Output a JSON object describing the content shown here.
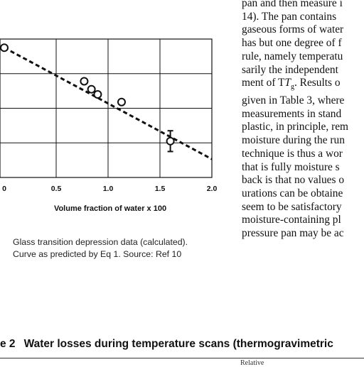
{
  "body_text": [
    "pan and then measure i",
    "14). The pan contains",
    "gaseous forms of water",
    "has but one degree of f",
    "rule, namely temperatu",
    "sarily the independent",
    "ment of T",
    "given in Table 3, where",
    "measurements in stand",
    "plastic, in principle, rem",
    "moisture during the run",
    "technique is thus a wor",
    "that is fully moisture s",
    "back is that no values o",
    "urations can be obtaine",
    "seem to be satisfactory",
    "moisture-containing pl",
    "pressure pan may be ac"
  ],
  "body_italic_T": "T",
  "body_subscript": "g",
  "body_after": ". Results o",
  "caption": [
    "Glass transition depression data (calculated).",
    "Curve as predicted by Eq 1. Source: Ref 10"
  ],
  "table_heading": {
    "label": "e 2",
    "title": "Water losses during temperature scans (thermogravimetric"
  },
  "table_col_fragment": "Relative",
  "chart_data": {
    "type": "scatter",
    "xlabel": "Volume fraction of water x 100",
    "xlim": [
      0,
      2.0
    ],
    "ylim": [
      0,
      4
    ],
    "x_ticks": [
      "0",
      "0.5",
      "1.0",
      "1.5",
      "2.0"
    ],
    "grid": true,
    "points": [
      {
        "x": 0.0,
        "y": 3.75
      },
      {
        "x": 0.77,
        "y": 2.78
      },
      {
        "x": 0.84,
        "y": 2.55
      },
      {
        "x": 0.9,
        "y": 2.4
      },
      {
        "x": 1.13,
        "y": 2.18
      },
      {
        "x": 1.6,
        "y": 1.05,
        "err": 0.3
      }
    ],
    "fit_line": [
      {
        "x": 0.0,
        "y": 3.75
      },
      {
        "x": 2.0,
        "y": 0.53
      }
    ]
  }
}
